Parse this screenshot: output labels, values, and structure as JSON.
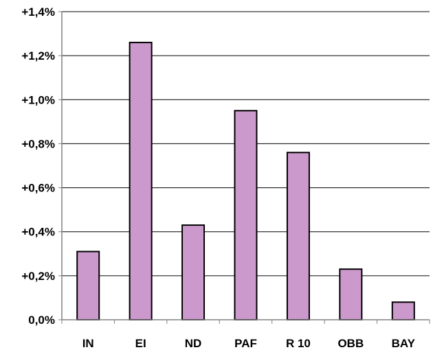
{
  "chart_data": {
    "type": "bar",
    "title": "",
    "xlabel": "",
    "ylabel": "",
    "categories": [
      "IN",
      "EI",
      "ND",
      "PAF",
      "R 10",
      "OBB",
      "BAY"
    ],
    "values": [
      0.31,
      1.26,
      0.43,
      0.95,
      0.76,
      0.23,
      0.08
    ],
    "ylim": [
      0,
      1.4
    ],
    "yticks": [
      0,
      0.2,
      0.4,
      0.6,
      0.8,
      1.0,
      1.2,
      1.4
    ],
    "ytick_labels": [
      "0,0%",
      "+0,2%",
      "+0,4%",
      "+0,6%",
      "+0,8%",
      "+1,0%",
      "+1,2%",
      "+1,4%"
    ],
    "grid": true,
    "legend": "none",
    "colors": {
      "bar_fill": "#cc99cc",
      "bar_stroke": "#000000",
      "grid": "#000000",
      "axis": "#808080"
    }
  }
}
